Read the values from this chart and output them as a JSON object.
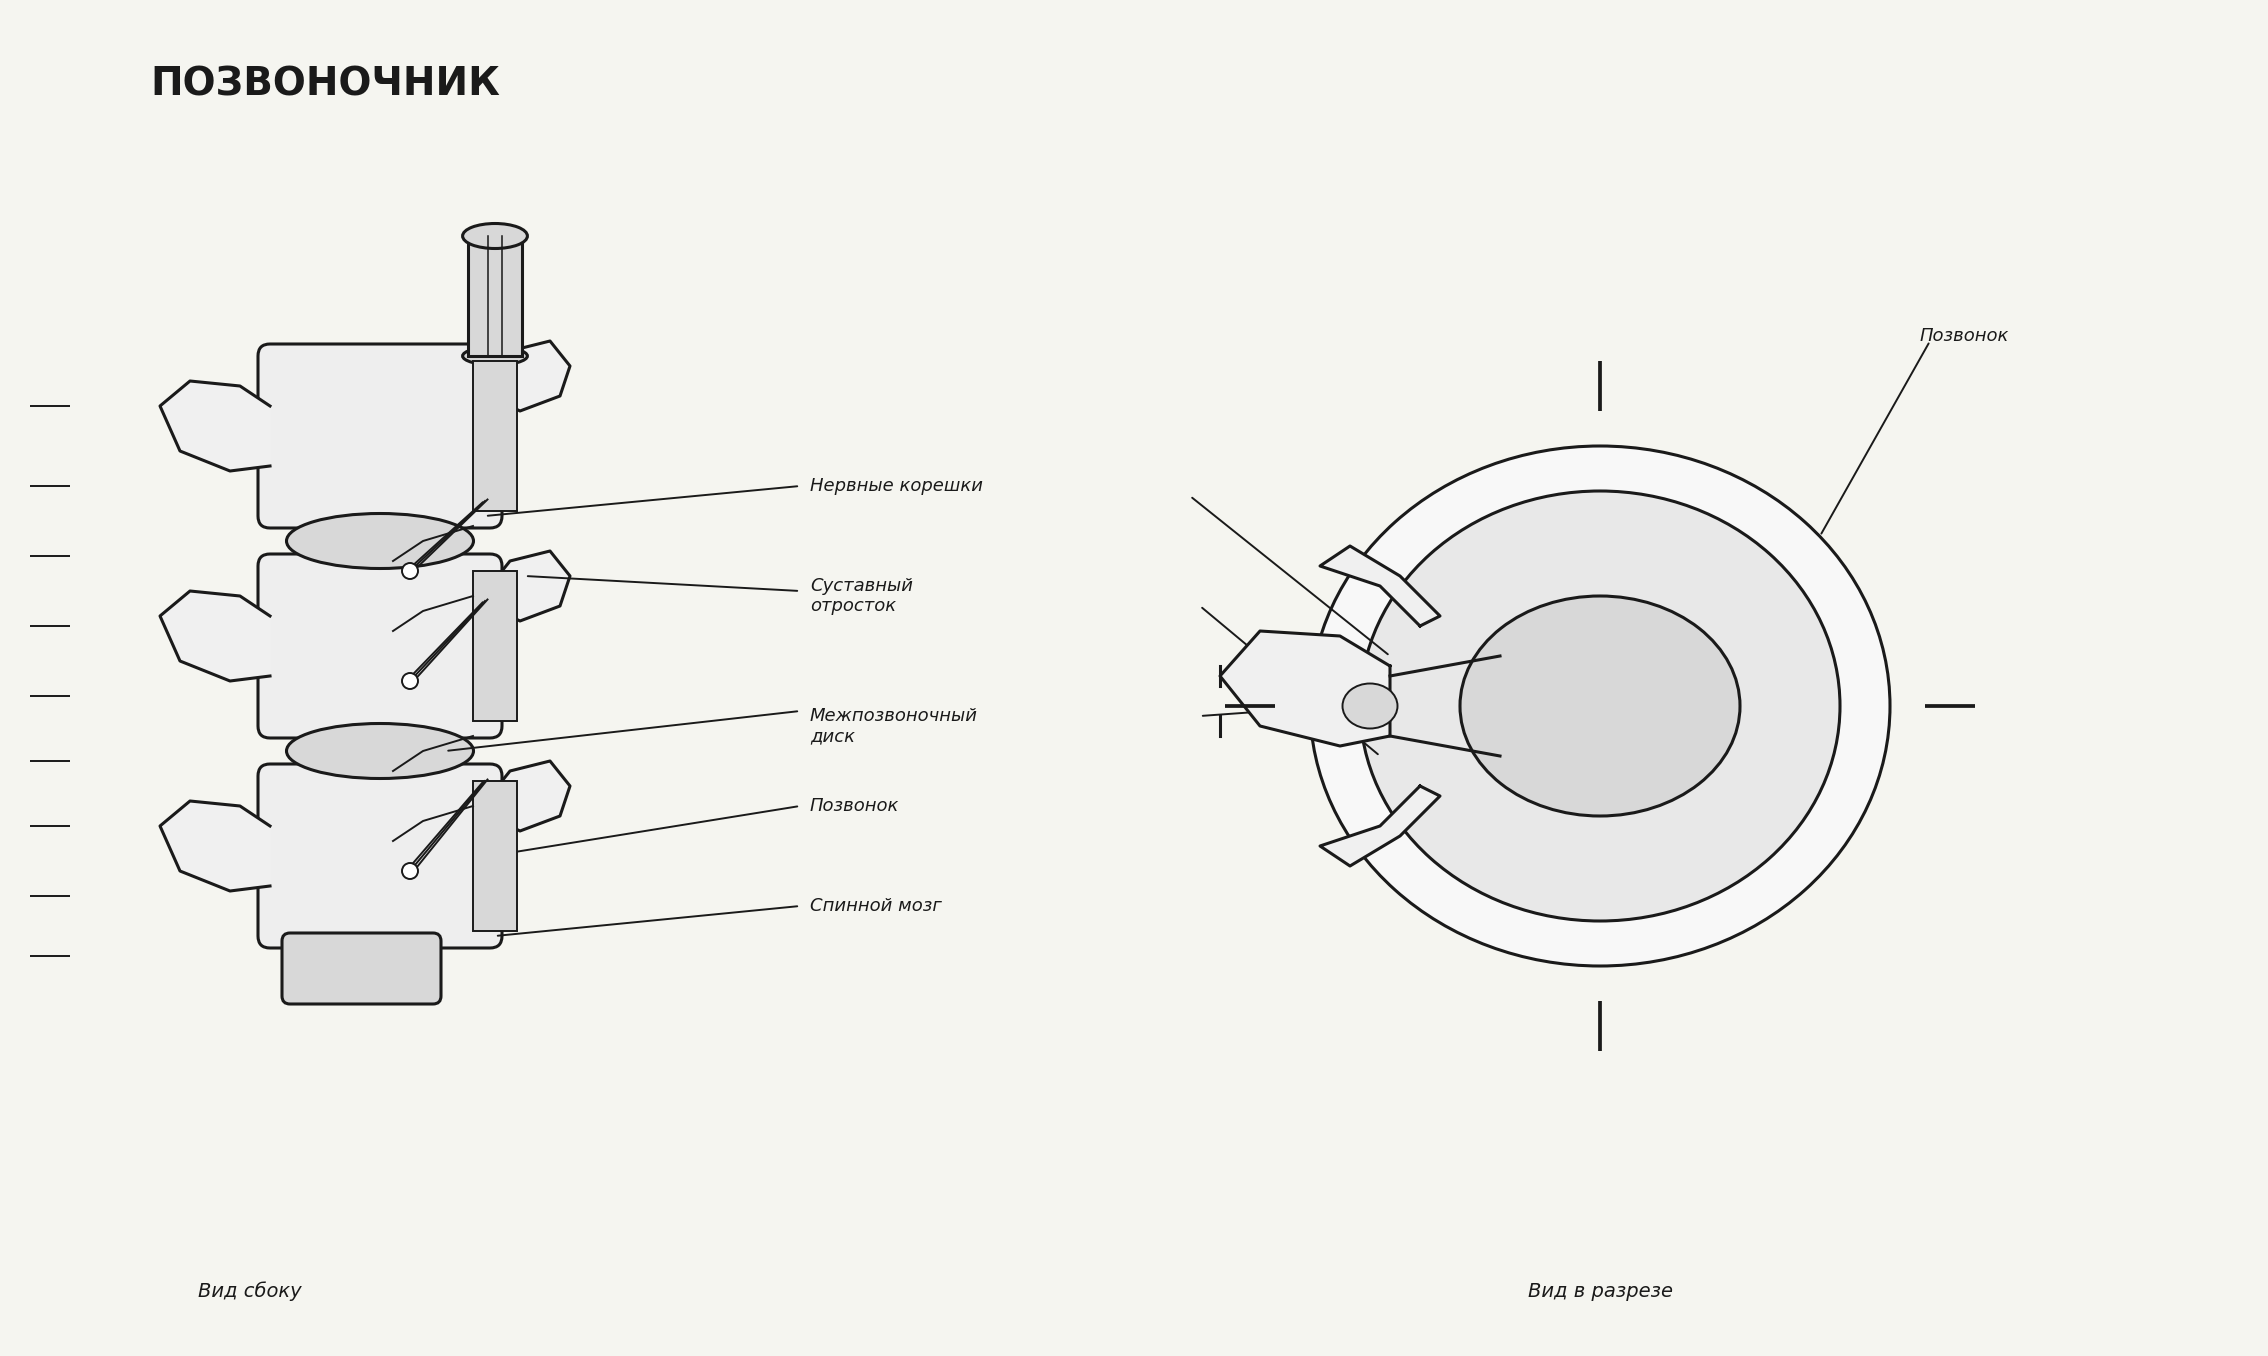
{
  "title": "ПОЗВОНОЧНИК",
  "bg_color": "#f5f5f0",
  "line_color": "#1a1a1a",
  "gray_fill": "#b0b0b0",
  "light_gray": "#d8d8d8",
  "white": "#ffffff",
  "label_nervnye": "Нервные корешки",
  "label_sustavnyi": "Суставный\nотросток",
  "label_mezhpozv": "Межпозвоночный\nдиск",
  "label_pozv": "Позвонок",
  "label_spinnoy": "Спинной мозг",
  "label_pozv2": "Позвонок",
  "caption_side": "Вид сбоку",
  "caption_cross": "Вид в разрезе"
}
